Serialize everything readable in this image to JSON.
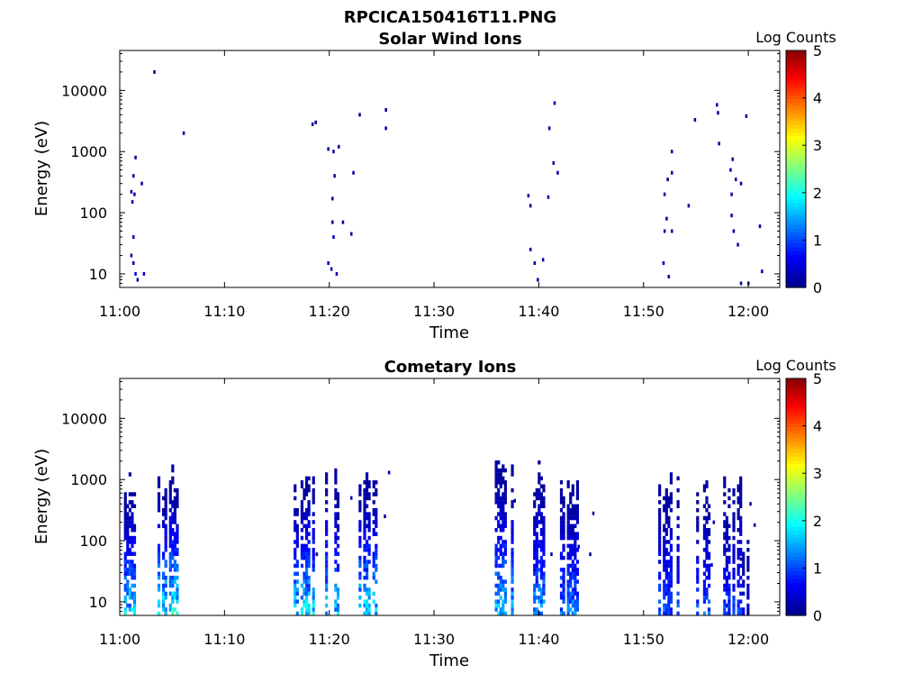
{
  "figure_title": "RPCICA150416T11.PNG",
  "colormap": [
    "#00008f",
    "#0000ff",
    "#0080ff",
    "#00ffff",
    "#80ff80",
    "#ffff00",
    "#ff8000",
    "#ff0000",
    "#800000"
  ],
  "chart_data": [
    {
      "type": "heatmap",
      "title": "Solar Wind Ions",
      "xlabel": "Time",
      "ylabel": "Energy (eV)",
      "xticks": [
        "11:00",
        "11:10",
        "11:20",
        "11:30",
        "11:40",
        "11:50",
        "12:00"
      ],
      "yticks": [
        "10",
        "100",
        "1000",
        "10000"
      ],
      "xlim": [
        "11:00",
        "12:03"
      ],
      "ylim": [
        6,
        45000
      ],
      "yscale": "log",
      "grid": false,
      "colorbar": {
        "label": "Log Counts",
        "ticks": [
          "0",
          "1",
          "2",
          "3",
          "4",
          "5"
        ],
        "range": [
          0,
          5
        ]
      },
      "points": [
        {
          "t": 1.0,
          "e": 20,
          "v": 0.2
        },
        {
          "t": 1.2,
          "e": 15,
          "v": 0.3
        },
        {
          "t": 1.4,
          "e": 10,
          "v": 0.3
        },
        {
          "t": 1.6,
          "e": 8,
          "v": 0.2
        },
        {
          "t": 1.2,
          "e": 40,
          "v": 0.2
        },
        {
          "t": 1.0,
          "e": 220,
          "v": 0.2
        },
        {
          "t": 1.3,
          "e": 200,
          "v": 0.1
        },
        {
          "t": 1.2,
          "e": 400,
          "v": 0.1
        },
        {
          "t": 1.4,
          "e": 800,
          "v": 0.1
        },
        {
          "t": 1.1,
          "e": 150,
          "v": 0.1
        },
        {
          "t": 2.0,
          "e": 300,
          "v": 0.1
        },
        {
          "t": 2.2,
          "e": 10,
          "v": 0.2
        },
        {
          "t": 3.2,
          "e": 20000,
          "v": 0.1
        },
        {
          "t": 6.0,
          "e": 2000,
          "v": 0.1
        },
        {
          "t": 19.8,
          "e": 15,
          "v": 0.3
        },
        {
          "t": 20.1,
          "e": 12,
          "v": 0.3
        },
        {
          "t": 20.3,
          "e": 40,
          "v": 0.3
        },
        {
          "t": 20.6,
          "e": 10,
          "v": 0.2
        },
        {
          "t": 20.2,
          "e": 70,
          "v": 0.2
        },
        {
          "t": 20.2,
          "e": 170,
          "v": 0.1
        },
        {
          "t": 20.4,
          "e": 400,
          "v": 0.1
        },
        {
          "t": 20.3,
          "e": 1000,
          "v": 0.1
        },
        {
          "t": 20.8,
          "e": 1200,
          "v": 0.1
        },
        {
          "t": 18.3,
          "e": 2800,
          "v": 0.1
        },
        {
          "t": 18.6,
          "e": 3000,
          "v": 0.1
        },
        {
          "t": 21.2,
          "e": 70,
          "v": 0.1
        },
        {
          "t": 22.0,
          "e": 45,
          "v": 0.1
        },
        {
          "t": 22.2,
          "e": 450,
          "v": 0.1
        },
        {
          "t": 22.8,
          "e": 4000,
          "v": 0.1
        },
        {
          "t": 25.3,
          "e": 4800,
          "v": 0.1
        },
        {
          "t": 25.3,
          "e": 2400,
          "v": 0.1
        },
        {
          "t": 19.8,
          "e": 1100,
          "v": 0.1
        },
        {
          "t": 39.1,
          "e": 25,
          "v": 0.1
        },
        {
          "t": 39.5,
          "e": 15,
          "v": 0.1
        },
        {
          "t": 39.8,
          "e": 8,
          "v": 0.1
        },
        {
          "t": 40.3,
          "e": 17,
          "v": 0.1
        },
        {
          "t": 38.9,
          "e": 190,
          "v": 0.1
        },
        {
          "t": 39.1,
          "e": 130,
          "v": 0.1
        },
        {
          "t": 40.8,
          "e": 180,
          "v": 0.1
        },
        {
          "t": 41.3,
          "e": 650,
          "v": 0.1
        },
        {
          "t": 41.7,
          "e": 450,
          "v": 0.1
        },
        {
          "t": 40.9,
          "e": 2400,
          "v": 0.1
        },
        {
          "t": 41.4,
          "e": 6200,
          "v": 0.1
        },
        {
          "t": 51.8,
          "e": 15,
          "v": 0.2
        },
        {
          "t": 52.3,
          "e": 9,
          "v": 0.2
        },
        {
          "t": 51.9,
          "e": 200,
          "v": 0.1
        },
        {
          "t": 52.2,
          "e": 350,
          "v": 0.1
        },
        {
          "t": 52.6,
          "e": 450,
          "v": 0.1
        },
        {
          "t": 52.6,
          "e": 1000,
          "v": 0.1
        },
        {
          "t": 52.1,
          "e": 80,
          "v": 0.1
        },
        {
          "t": 51.9,
          "e": 50,
          "v": 0.1
        },
        {
          "t": 52.6,
          "e": 50,
          "v": 0.1
        },
        {
          "t": 54.2,
          "e": 130,
          "v": 0.1
        },
        {
          "t": 54.8,
          "e": 3300,
          "v": 0.1
        },
        {
          "t": 56.9,
          "e": 5800,
          "v": 0.1
        },
        {
          "t": 57.0,
          "e": 4300,
          "v": 0.1
        },
        {
          "t": 57.1,
          "e": 1350,
          "v": 0.1
        },
        {
          "t": 58.2,
          "e": 500,
          "v": 0.2
        },
        {
          "t": 58.3,
          "e": 200,
          "v": 0.2
        },
        {
          "t": 58.4,
          "e": 750,
          "v": 0.1
        },
        {
          "t": 58.7,
          "e": 350,
          "v": 0.1
        },
        {
          "t": 58.3,
          "e": 90,
          "v": 0.1
        },
        {
          "t": 58.5,
          "e": 50,
          "v": 0.1
        },
        {
          "t": 58.9,
          "e": 30,
          "v": 0.1
        },
        {
          "t": 59.2,
          "e": 300,
          "v": 0.1
        },
        {
          "t": 59.7,
          "e": 3800,
          "v": 0.1
        },
        {
          "t": 59.2,
          "e": 7,
          "v": 0.2
        },
        {
          "t": 59.9,
          "e": 7,
          "v": 0.2
        },
        {
          "t": 61.0,
          "e": 60,
          "v": 0.1
        },
        {
          "t": 61.2,
          "e": 11,
          "v": 0.2
        }
      ]
    },
    {
      "type": "heatmap",
      "title": "Cometary Ions",
      "xlabel": "Time",
      "ylabel": "Energy (eV)",
      "xticks": [
        "11:00",
        "11:10",
        "11:20",
        "11:30",
        "11:40",
        "11:50",
        "12:00"
      ],
      "yticks": [
        "10",
        "100",
        "1000",
        "10000"
      ],
      "xlim": [
        "11:00",
        "12:03"
      ],
      "ylim": [
        6,
        45000
      ],
      "yscale": "log",
      "grid": false,
      "colorbar": {
        "label": "Log Counts",
        "ticks": [
          "0",
          "1",
          "2",
          "3",
          "4",
          "5"
        ],
        "range": [
          0,
          5
        ]
      },
      "bursts": [
        {
          "t0": 0.4,
          "t1": 2.2,
          "emax": 1400,
          "vmax": 2.0
        },
        {
          "t0": 3.6,
          "t1": 5.6,
          "emax": 1700,
          "vmax": 2.3
        },
        {
          "t0": 16.6,
          "t1": 18.6,
          "emax": 1600,
          "vmax": 2.1
        },
        {
          "t0": 19.6,
          "t1": 21.3,
          "emax": 2200,
          "vmax": 1.9
        },
        {
          "t0": 22.8,
          "t1": 24.8,
          "emax": 1700,
          "vmax": 2.1
        },
        {
          "t0": 35.8,
          "t1": 37.6,
          "emax": 2300,
          "vmax": 1.9
        },
        {
          "t0": 38.8,
          "t1": 40.6,
          "emax": 2400,
          "vmax": 1.7
        },
        {
          "t0": 41.8,
          "t1": 43.8,
          "emax": 1500,
          "vmax": 1.5
        },
        {
          "t0": 51.4,
          "t1": 53.3,
          "emax": 1500,
          "vmax": 1.3
        },
        {
          "t0": 54.8,
          "t1": 56.3,
          "emax": 1300,
          "vmax": 1.3
        },
        {
          "t0": 57.6,
          "t1": 59.3,
          "emax": 1200,
          "vmax": 1.1
        },
        {
          "t0": 59.4,
          "t1": 60.2,
          "emax": 100,
          "vmax": 0.6
        }
      ],
      "points": [
        {
          "t": 25.6,
          "e": 1300,
          "v": 0.1
        },
        {
          "t": 25.2,
          "e": 250,
          "v": 0.1
        },
        {
          "t": 18.7,
          "e": 60,
          "v": 0.1
        },
        {
          "t": 22.0,
          "e": 500,
          "v": 0.1
        },
        {
          "t": 37.6,
          "e": 450,
          "v": 0.1
        },
        {
          "t": 44.8,
          "e": 60,
          "v": 0.1
        },
        {
          "t": 45.1,
          "e": 280,
          "v": 0.1
        },
        {
          "t": 43.7,
          "e": 80,
          "v": 0.1
        },
        {
          "t": 41.1,
          "e": 60,
          "v": 0.1
        },
        {
          "t": 56.6,
          "e": 200,
          "v": 0.1
        },
        {
          "t": 56.4,
          "e": 40,
          "v": 0.1
        },
        {
          "t": 60.1,
          "e": 400,
          "v": 0.1
        },
        {
          "t": 60.5,
          "e": 180,
          "v": 0.1
        },
        {
          "t": 59.2,
          "e": 50,
          "v": 0.1
        }
      ]
    }
  ]
}
